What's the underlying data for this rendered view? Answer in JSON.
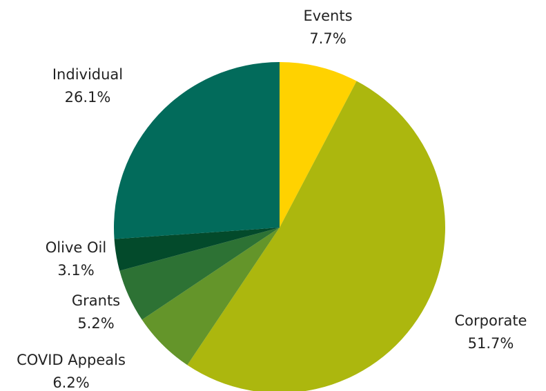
{
  "chart_data": {
    "type": "pie",
    "title": "",
    "start": "12 o'clock",
    "direction": "clockwise",
    "slices": [
      {
        "label": "Events",
        "value": 7.7,
        "display": "7.7%",
        "color": "#ffd200"
      },
      {
        "label": "Corporate",
        "value": 51.7,
        "display": "51.7%",
        "color": "#acb70e"
      },
      {
        "label": "COVID Appeals",
        "value": 6.2,
        "display": "6.2%",
        "color": "#64952a"
      },
      {
        "label": "Grants",
        "value": 5.2,
        "display": "5.2%",
        "color": "#2d7234"
      },
      {
        "label": "Olive Oil",
        "value": 3.1,
        "display": "3.1%",
        "color": "#034a2b"
      },
      {
        "label": "Individual",
        "value": 26.1,
        "display": "26.1%",
        "color": "#026b5b"
      }
    ]
  }
}
